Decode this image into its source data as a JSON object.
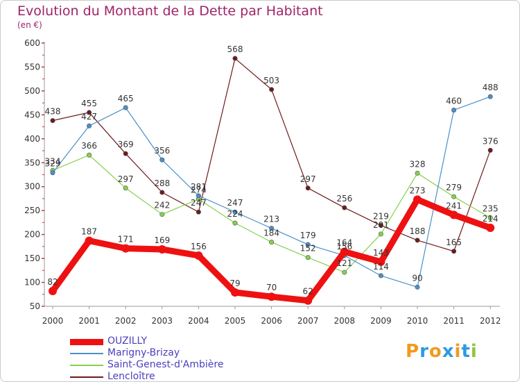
{
  "header": {
    "title": "Evolution du Montant de la Dette par Habitant",
    "unit": "(en €)"
  },
  "logo": {
    "letters": [
      "P",
      "r",
      "o",
      "x",
      "i",
      "t",
      "i"
    ],
    "colors": [
      "#f29a1e",
      "#2c9be0",
      "#f29a1e",
      "#2c9be0",
      "#f29a1e",
      "#2c9be0",
      "#8cc63f"
    ]
  },
  "chart_data": {
    "type": "line",
    "title": "Evolution du Montant de la Dette par Habitant",
    "subtitle": "(en €)",
    "x": [
      "2000",
      "2001",
      "2002",
      "2003",
      "2004",
      "2005",
      "2006",
      "2007",
      "2008",
      "2009",
      "2010",
      "2011",
      "2012"
    ],
    "ylim": [
      50,
      600
    ],
    "yticks": [
      50,
      100,
      150,
      200,
      250,
      300,
      350,
      400,
      450,
      500,
      550,
      600
    ],
    "grid": false,
    "legend_position": "bottom-left",
    "series": [
      {
        "name": "OUZILLY",
        "color": "#ee1111",
        "values": [
          82,
          187,
          171,
          169,
          156,
          79,
          70,
          62,
          164,
          143,
          273,
          241,
          214
        ]
      },
      {
        "name": "Marigny-Brizay",
        "color": "#4a90c8",
        "values": [
          329,
          427,
          465,
          356,
          281,
          247,
          213,
          179,
          156,
          114,
          90,
          460,
          488
        ]
      },
      {
        "name": "Saint-Genest-d'Ambière",
        "color": "#86d04e",
        "values": [
          334,
          366,
          297,
          242,
          274,
          224,
          184,
          152,
          121,
          201,
          328,
          279,
          235
        ]
      },
      {
        "name": "Lencloître",
        "color": "#6e1a1a",
        "values": [
          438,
          455,
          369,
          288,
          247,
          568,
          503,
          297,
          256,
          219,
          188,
          165,
          376
        ]
      }
    ]
  }
}
